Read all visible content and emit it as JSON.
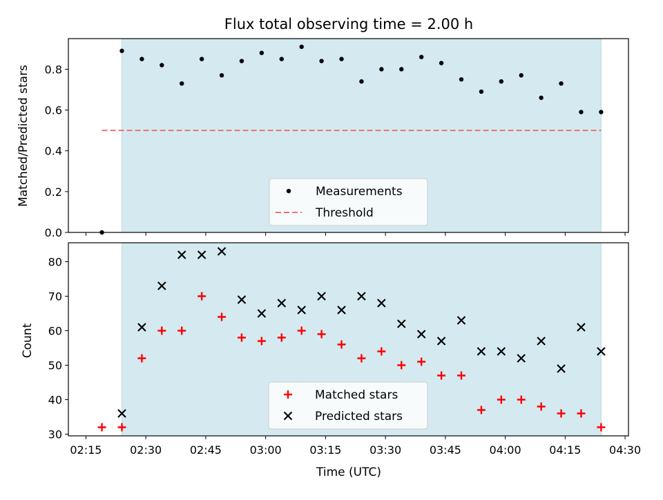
{
  "chart_data": [
    {
      "type": "scatter",
      "title": "Flux total observing time = 2.00 h",
      "xlabel": "",
      "ylabel": "Matched/Predicted stars",
      "ylim": [
        0.0,
        0.95
      ],
      "yticks": [
        0.0,
        0.2,
        0.4,
        0.6,
        0.8
      ],
      "ytick_labels": [
        "0.0",
        "0.2",
        "0.4",
        "0.6",
        "0.8"
      ],
      "x": [
        "02:19",
        "02:24",
        "02:29",
        "02:34",
        "02:39",
        "02:44",
        "02:49",
        "02:54",
        "02:59",
        "03:04",
        "03:09",
        "03:14",
        "03:19",
        "03:24",
        "03:29",
        "03:34",
        "03:39",
        "03:44",
        "03:49",
        "03:54",
        "03:59",
        "04:04",
        "04:09",
        "04:14",
        "04:19",
        "04:24"
      ],
      "shaded_span": [
        "02:24",
        "04:24"
      ],
      "shade_color": "#d4eaf0",
      "series": [
        {
          "name": "Measurements",
          "color": "#000000",
          "values": [
            0.0,
            0.89,
            0.85,
            0.82,
            0.73,
            0.85,
            0.77,
            0.84,
            0.88,
            0.85,
            0.91,
            0.84,
            0.85,
            0.74,
            0.8,
            0.8,
            0.86,
            0.83,
            0.75,
            0.69,
            0.74,
            0.77,
            0.66,
            0.73,
            0.59,
            0.59
          ]
        },
        {
          "name": "Threshold",
          "color": "#f07070",
          "value": 0.5,
          "span": [
            "02:19",
            "04:24"
          ]
        }
      ],
      "legend": "lower-center"
    },
    {
      "type": "scatter",
      "title": "",
      "xlabel": "Time (UTC)",
      "ylabel": "Count",
      "ylim": [
        29.5,
        85.5
      ],
      "yticks": [
        30,
        40,
        50,
        60,
        70,
        80
      ],
      "ytick_labels": [
        "30",
        "40",
        "50",
        "60",
        "70",
        "80"
      ],
      "xticks": [
        "02:15",
        "02:30",
        "02:45",
        "03:00",
        "03:15",
        "03:30",
        "03:45",
        "04:00",
        "04:15",
        "04:30"
      ],
      "x": [
        "02:19",
        "02:24",
        "02:29",
        "02:34",
        "02:39",
        "02:44",
        "02:49",
        "02:54",
        "02:59",
        "03:04",
        "03:09",
        "03:14",
        "03:19",
        "03:24",
        "03:29",
        "03:34",
        "03:39",
        "03:44",
        "03:49",
        "03:54",
        "03:59",
        "04:04",
        "04:09",
        "04:14",
        "04:19",
        "04:24"
      ],
      "shaded_span": [
        "02:24",
        "04:24"
      ],
      "shade_color": "#d4eaf0",
      "series": [
        {
          "name": "Matched stars",
          "marker": "+",
          "color": "#ff0000",
          "values": [
            32,
            32,
            52,
            60,
            60,
            70,
            64,
            58,
            57,
            58,
            60,
            59,
            56,
            52,
            54,
            50,
            51,
            47,
            47,
            37,
            40,
            40,
            38,
            36,
            36,
            32
          ]
        },
        {
          "name": "Predicted stars",
          "marker": "x",
          "color": "#000000",
          "values": [
            null,
            36,
            61,
            73,
            82,
            82,
            83,
            69,
            65,
            68,
            66,
            70,
            66,
            70,
            68,
            62,
            59,
            57,
            63,
            54,
            54,
            52,
            57,
            49,
            61,
            54
          ]
        }
      ],
      "legend": "lower-center"
    }
  ]
}
